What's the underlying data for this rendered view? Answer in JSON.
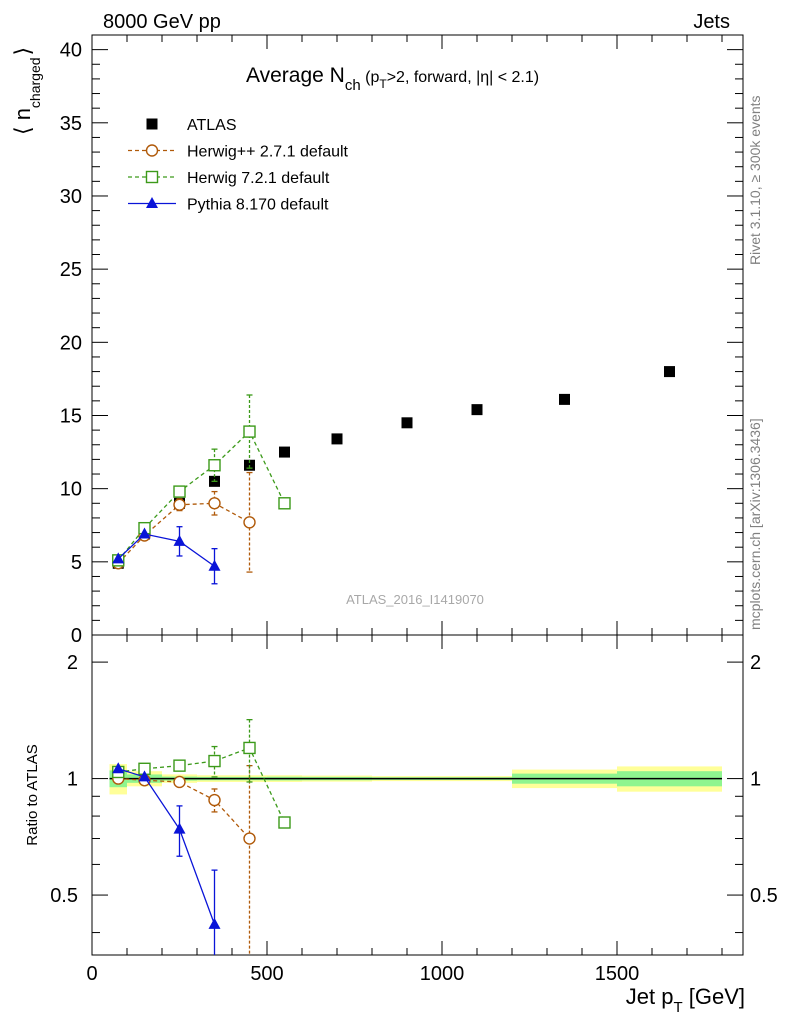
{
  "header": {
    "energy_label": "8000 GeV pp",
    "process_label": "Jets"
  },
  "side_text": {
    "rivet_label": "Rivet 3.1.10, ≥ 300k events",
    "mcplots_label": "mcplots.cern.ch [arXiv:1306.3436]"
  },
  "watermark": "ATLAS_2016_I1419070",
  "chart_data": [
    {
      "panel": "main",
      "type": "scatter",
      "title": "Average N_ch (p_T>2, forward, |η| < 2.1)",
      "title_parts": {
        "main": "Average N",
        "sub1": "ch",
        "paren_open": " (p",
        "sub2": "T",
        "rest": ">2, forward, |η| < 2.1)"
      },
      "ylabel": "⟨ n_charged ⟩",
      "ylabel_parts": {
        "open": "⟨ n",
        "sub": "charged",
        "close": "⟩"
      },
      "xlim": [
        0,
        1860
      ],
      "ylim": [
        0,
        41
      ],
      "y_ticks": [
        0,
        5,
        10,
        15,
        20,
        25,
        30,
        35,
        40
      ],
      "legend_position": "top-left",
      "series": [
        {
          "name": "ATLAS",
          "color": "#000000",
          "marker": "filled-square",
          "line": "none",
          "points": [
            {
              "x": 75,
              "y": 4.9
            },
            {
              "x": 150,
              "y": 6.9
            },
            {
              "x": 250,
              "y": 9.0
            },
            {
              "x": 350,
              "y": 10.5
            },
            {
              "x": 450,
              "y": 11.6
            },
            {
              "x": 550,
              "y": 12.5
            },
            {
              "x": 700,
              "y": 13.4
            },
            {
              "x": 900,
              "y": 14.5
            },
            {
              "x": 1100,
              "y": 15.4
            },
            {
              "x": 1350,
              "y": 16.1
            },
            {
              "x": 1650,
              "y": 18.0
            }
          ]
        },
        {
          "name": "Herwig++ 2.7.1 default",
          "color": "#b05a0a",
          "marker": "open-circle",
          "line": "dashed",
          "points": [
            {
              "x": 75,
              "y": 4.9
            },
            {
              "x": 150,
              "y": 6.8
            },
            {
              "x": 250,
              "y": 8.9,
              "err": 0.4
            },
            {
              "x": 350,
              "y": 9.0,
              "err": 0.8
            },
            {
              "x": 450,
              "y": 7.7,
              "err": 3.4
            }
          ]
        },
        {
          "name": "Herwig 7.2.1 default",
          "color": "#3c9a1a",
          "marker": "open-square",
          "line": "dashed",
          "points": [
            {
              "x": 75,
              "y": 5.1
            },
            {
              "x": 150,
              "y": 7.3
            },
            {
              "x": 250,
              "y": 9.8
            },
            {
              "x": 350,
              "y": 11.6,
              "err": 1.1
            },
            {
              "x": 450,
              "y": 13.9,
              "err": 2.5
            },
            {
              "x": 550,
              "y": 9.0
            }
          ]
        },
        {
          "name": "Pythia 8.170 default",
          "color": "#0a14d8",
          "marker": "filled-triangle",
          "line": "solid",
          "points": [
            {
              "x": 75,
              "y": 5.2
            },
            {
              "x": 150,
              "y": 6.9
            },
            {
              "x": 250,
              "y": 6.4,
              "err": 1.0
            },
            {
              "x": 350,
              "y": 4.7,
              "err": 1.2
            }
          ]
        }
      ]
    },
    {
      "panel": "ratio",
      "type": "scatter",
      "ylabel": "Ratio to ATLAS",
      "xlabel": "Jet p_T [GeV]",
      "xlabel_parts": {
        "main": "Jet p",
        "sub": "T",
        "rest": " [GeV]"
      },
      "xlim": [
        0,
        1860
      ],
      "ylim": [
        0.35,
        2.35
      ],
      "x_ticks": [
        0,
        500,
        1000,
        1500
      ],
      "y_ticks": [
        0.5,
        1,
        2
      ],
      "bands": [
        {
          "x0": 50,
          "x1": 100,
          "yellow": 0.09,
          "green": 0.05
        },
        {
          "x0": 100,
          "x1": 200,
          "yellow": 0.045,
          "green": 0.025
        },
        {
          "x0": 200,
          "x1": 300,
          "yellow": 0.025,
          "green": 0.012
        },
        {
          "x0": 300,
          "x1": 400,
          "yellow": 0.02,
          "green": 0.01
        },
        {
          "x0": 400,
          "x1": 500,
          "yellow": 0.02,
          "green": 0.01
        },
        {
          "x0": 500,
          "x1": 600,
          "yellow": 0.02,
          "green": 0.011
        },
        {
          "x0": 600,
          "x1": 800,
          "yellow": 0.018,
          "green": 0.01
        },
        {
          "x0": 800,
          "x1": 1000,
          "yellow": 0.015,
          "green": 0.008
        },
        {
          "x0": 1000,
          "x1": 1200,
          "yellow": 0.015,
          "green": 0.008
        },
        {
          "x0": 1200,
          "x1": 1500,
          "yellow": 0.055,
          "green": 0.03
        },
        {
          "x0": 1500,
          "x1": 1800,
          "yellow": 0.075,
          "green": 0.045
        }
      ],
      "series": [
        {
          "name": "Herwig++ 2.7.1 default",
          "color": "#b05a0a",
          "marker": "open-circle",
          "line": "dashed",
          "points": [
            {
              "x": 75,
              "y": 1.0
            },
            {
              "x": 150,
              "y": 0.99
            },
            {
              "x": 250,
              "y": 0.98
            },
            {
              "x": 350,
              "y": 0.88,
              "err": 0.06
            },
            {
              "x": 450,
              "y": 0.7,
              "err": 0.38
            }
          ]
        },
        {
          "name": "Herwig 7.2.1 default",
          "color": "#3c9a1a",
          "marker": "open-square",
          "line": "dashed",
          "points": [
            {
              "x": 75,
              "y": 1.04
            },
            {
              "x": 150,
              "y": 1.06
            },
            {
              "x": 250,
              "y": 1.08
            },
            {
              "x": 350,
              "y": 1.11,
              "err": 0.1
            },
            {
              "x": 450,
              "y": 1.2,
              "err": 0.22
            },
            {
              "x": 550,
              "y": 0.77
            }
          ]
        },
        {
          "name": "Pythia 8.170 default",
          "color": "#0a14d8",
          "marker": "filled-triangle",
          "line": "solid",
          "points": [
            {
              "x": 75,
              "y": 1.06
            },
            {
              "x": 150,
              "y": 1.01
            },
            {
              "x": 250,
              "y": 0.74,
              "err": 0.11
            },
            {
              "x": 350,
              "y": 0.42,
              "err": 0.16
            }
          ]
        }
      ]
    }
  ]
}
